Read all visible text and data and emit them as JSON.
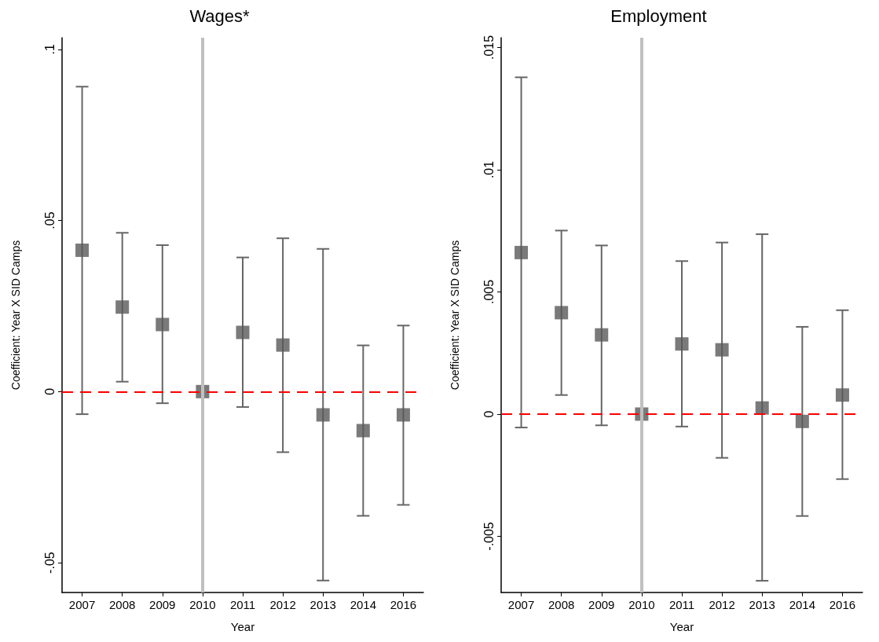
{
  "chart_data": [
    {
      "type": "scatter",
      "title": "Wages*",
      "xlabel": "Year",
      "ylabel": "Coefficient: Year X SID Camps",
      "categories": [
        "2007",
        "2008",
        "2009",
        "2010",
        "2011",
        "2012",
        "2013",
        "2014",
        "2016"
      ],
      "series": [
        {
          "color": "#595959",
          "values": [
            0.0413,
            0.0247,
            0.0196,
            0,
            0.0173,
            0.0136,
            -0.0068,
            -0.0114,
            -0.0068
          ],
          "errors": [
            [
              -0.0066,
              0.0891
            ],
            [
              0.0029,
              0.0464
            ],
            [
              -0.0034,
              0.0428
            ],
            null,
            [
              -0.0045,
              0.0392
            ],
            [
              -0.0177,
              0.0448
            ],
            [
              -0.0552,
              0.0417
            ],
            [
              -0.0363,
              0.0135
            ],
            [
              -0.0331,
              0.0193
            ]
          ]
        }
      ],
      "ylim": [
        -0.0587,
        0.1034
      ],
      "yticks": [
        {
          "value": -0.05,
          "label": "-.05"
        },
        0,
        {
          "value": 0.05,
          "label": ".05"
        },
        {
          "value": 0.1,
          "label": ".1"
        }
      ],
      "ref_lines": [
        {
          "axis": "y",
          "value": 0,
          "color": "#ff0000",
          "line_style": "dashed"
        },
        {
          "axis": "x",
          "value": "2010",
          "color": "#c0c0c0",
          "line_style": "solid"
        }
      ],
      "grid": false,
      "marker": "square"
    },
    {
      "type": "scatter",
      "title": "Employment",
      "xlabel": "Year",
      "ylabel": "Coefficient: Year X SID Camps",
      "categories": [
        "2007",
        "2008",
        "2009",
        "2010",
        "2011",
        "2012",
        "2013",
        "2014",
        "2016"
      ],
      "series": [
        {
          "color": "#595959",
          "values": [
            0.00661,
            0.00415,
            0.00324,
            0,
            0.00287,
            0.00263,
            0.00025,
            -0.0003,
            0.00078
          ],
          "errors": [
            [
              -0.00055,
              0.01378
            ],
            [
              0.00078,
              0.00751
            ],
            [
              -0.00046,
              0.0069
            ],
            null,
            [
              -0.00051,
              0.00626
            ],
            [
              -0.00179,
              0.00702
            ],
            [
              -0.00682,
              0.00736
            ],
            [
              -0.00417,
              0.00357
            ],
            [
              -0.00266,
              0.00425
            ]
          ]
        }
      ],
      "ylim": [
        -0.0073,
        0.0154
      ],
      "yticks": [
        {
          "value": -0.005,
          "label": "-.005"
        },
        0,
        {
          "value": 0.005,
          "label": ".005"
        },
        {
          "value": 0.01,
          "label": ".01"
        },
        {
          "value": 0.015,
          "label": ".015"
        }
      ],
      "ref_lines": [
        {
          "axis": "y",
          "value": 0,
          "color": "#ff0000",
          "line_style": "dashed"
        },
        {
          "axis": "x",
          "value": "2010",
          "color": "#c0c0c0",
          "line_style": "solid"
        }
      ],
      "grid": false,
      "marker": "square"
    }
  ]
}
